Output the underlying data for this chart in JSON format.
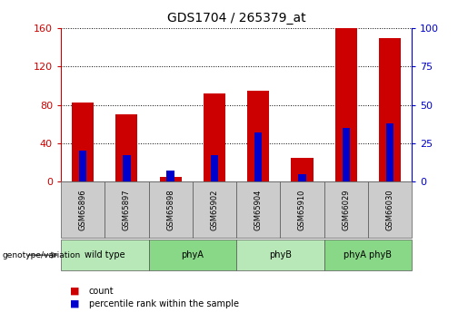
{
  "title": "GDS1704 / 265379_at",
  "samples": [
    "GSM65896",
    "GSM65897",
    "GSM65898",
    "GSM65902",
    "GSM65904",
    "GSM65910",
    "GSM66029",
    "GSM66030"
  ],
  "count_values": [
    82,
    70,
    5,
    92,
    95,
    25,
    160,
    150
  ],
  "percentile_values": [
    20,
    17,
    7,
    17,
    32,
    5,
    35,
    38
  ],
  "groups": [
    {
      "label": "wild type",
      "start": 0,
      "end": 2,
      "color": "#b8e8b8"
    },
    {
      "label": "phyA",
      "start": 2,
      "end": 4,
      "color": "#88d888"
    },
    {
      "label": "phyB",
      "start": 4,
      "end": 6,
      "color": "#b8e8b8"
    },
    {
      "label": "phyA phyB",
      "start": 6,
      "end": 8,
      "color": "#88d888"
    }
  ],
  "count_color": "#cc0000",
  "percentile_color": "#0000cc",
  "left_ylim": [
    0,
    160
  ],
  "right_ylim": [
    0,
    100
  ],
  "left_yticks": [
    0,
    40,
    80,
    120,
    160
  ],
  "right_yticks": [
    0,
    25,
    50,
    75,
    100
  ],
  "left_ycolor": "#cc0000",
  "right_ycolor": "#0000cc",
  "bg_color": "#ffffff",
  "sample_box_color": "#cccccc",
  "genotype_label": "genotype/variation",
  "legend_count": "count",
  "legend_percentile": "percentile rank within the sample"
}
